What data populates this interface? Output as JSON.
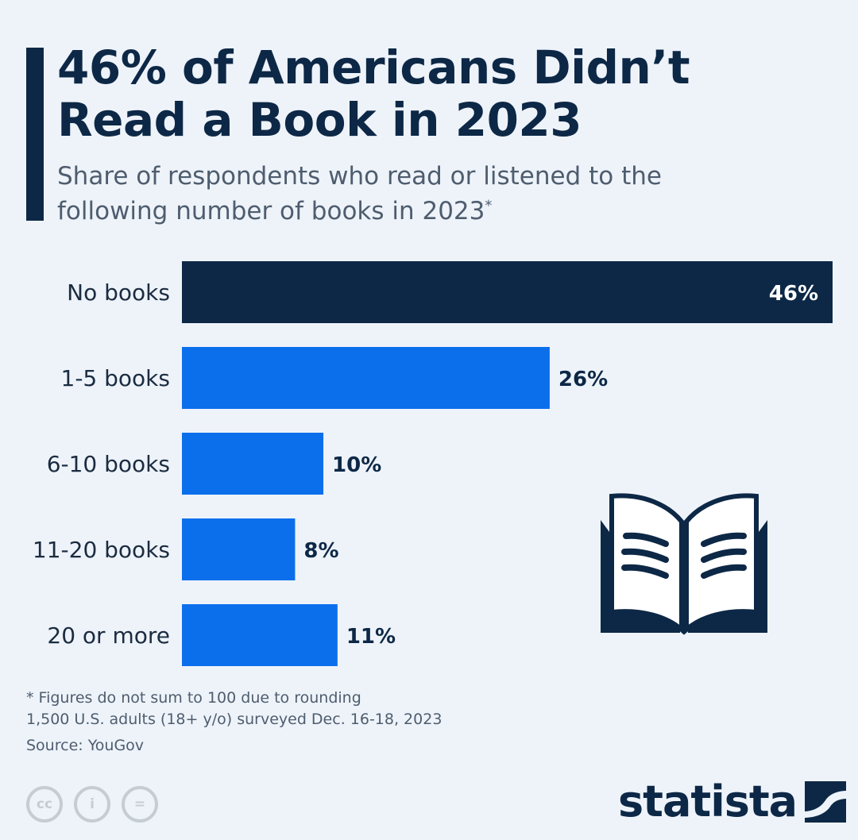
{
  "title": "46% of Americans Didn’t Read a Book in 2023",
  "subtitle": "Share of respondents who read or listened to the following number of books in 2023",
  "subtitle_mark": "*",
  "chart_data": {
    "type": "bar",
    "orientation": "horizontal",
    "categories": [
      "No books",
      "1-5 books",
      "6-10 books",
      "11-20 books",
      "20 or more"
    ],
    "values": [
      46,
      26,
      10,
      8,
      11
    ],
    "value_labels": [
      "46%",
      "26%",
      "10%",
      "8%",
      "11%"
    ],
    "unit": "%",
    "xlim": [
      0,
      46
    ],
    "grid": false,
    "colors": {
      "highlight": "#0d2846",
      "default": "#0b6fec"
    }
  },
  "footnotes": [
    "* Figures do not sum to 100 due to rounding",
    "1,500 U.S. adults (18+ y/o) surveyed Dec. 16-18, 2023"
  ],
  "source": "Source: YouGov",
  "license_icons": [
    "cc-icon",
    "attribution-icon",
    "no-derivatives-icon"
  ],
  "license_labels": [
    "cc",
    "i",
    "="
  ],
  "logo": "statista",
  "colors": {
    "background": "#eef3fa",
    "navy": "#0d2846",
    "blue": "#0b6fec",
    "muted": "#4e5d6e"
  }
}
